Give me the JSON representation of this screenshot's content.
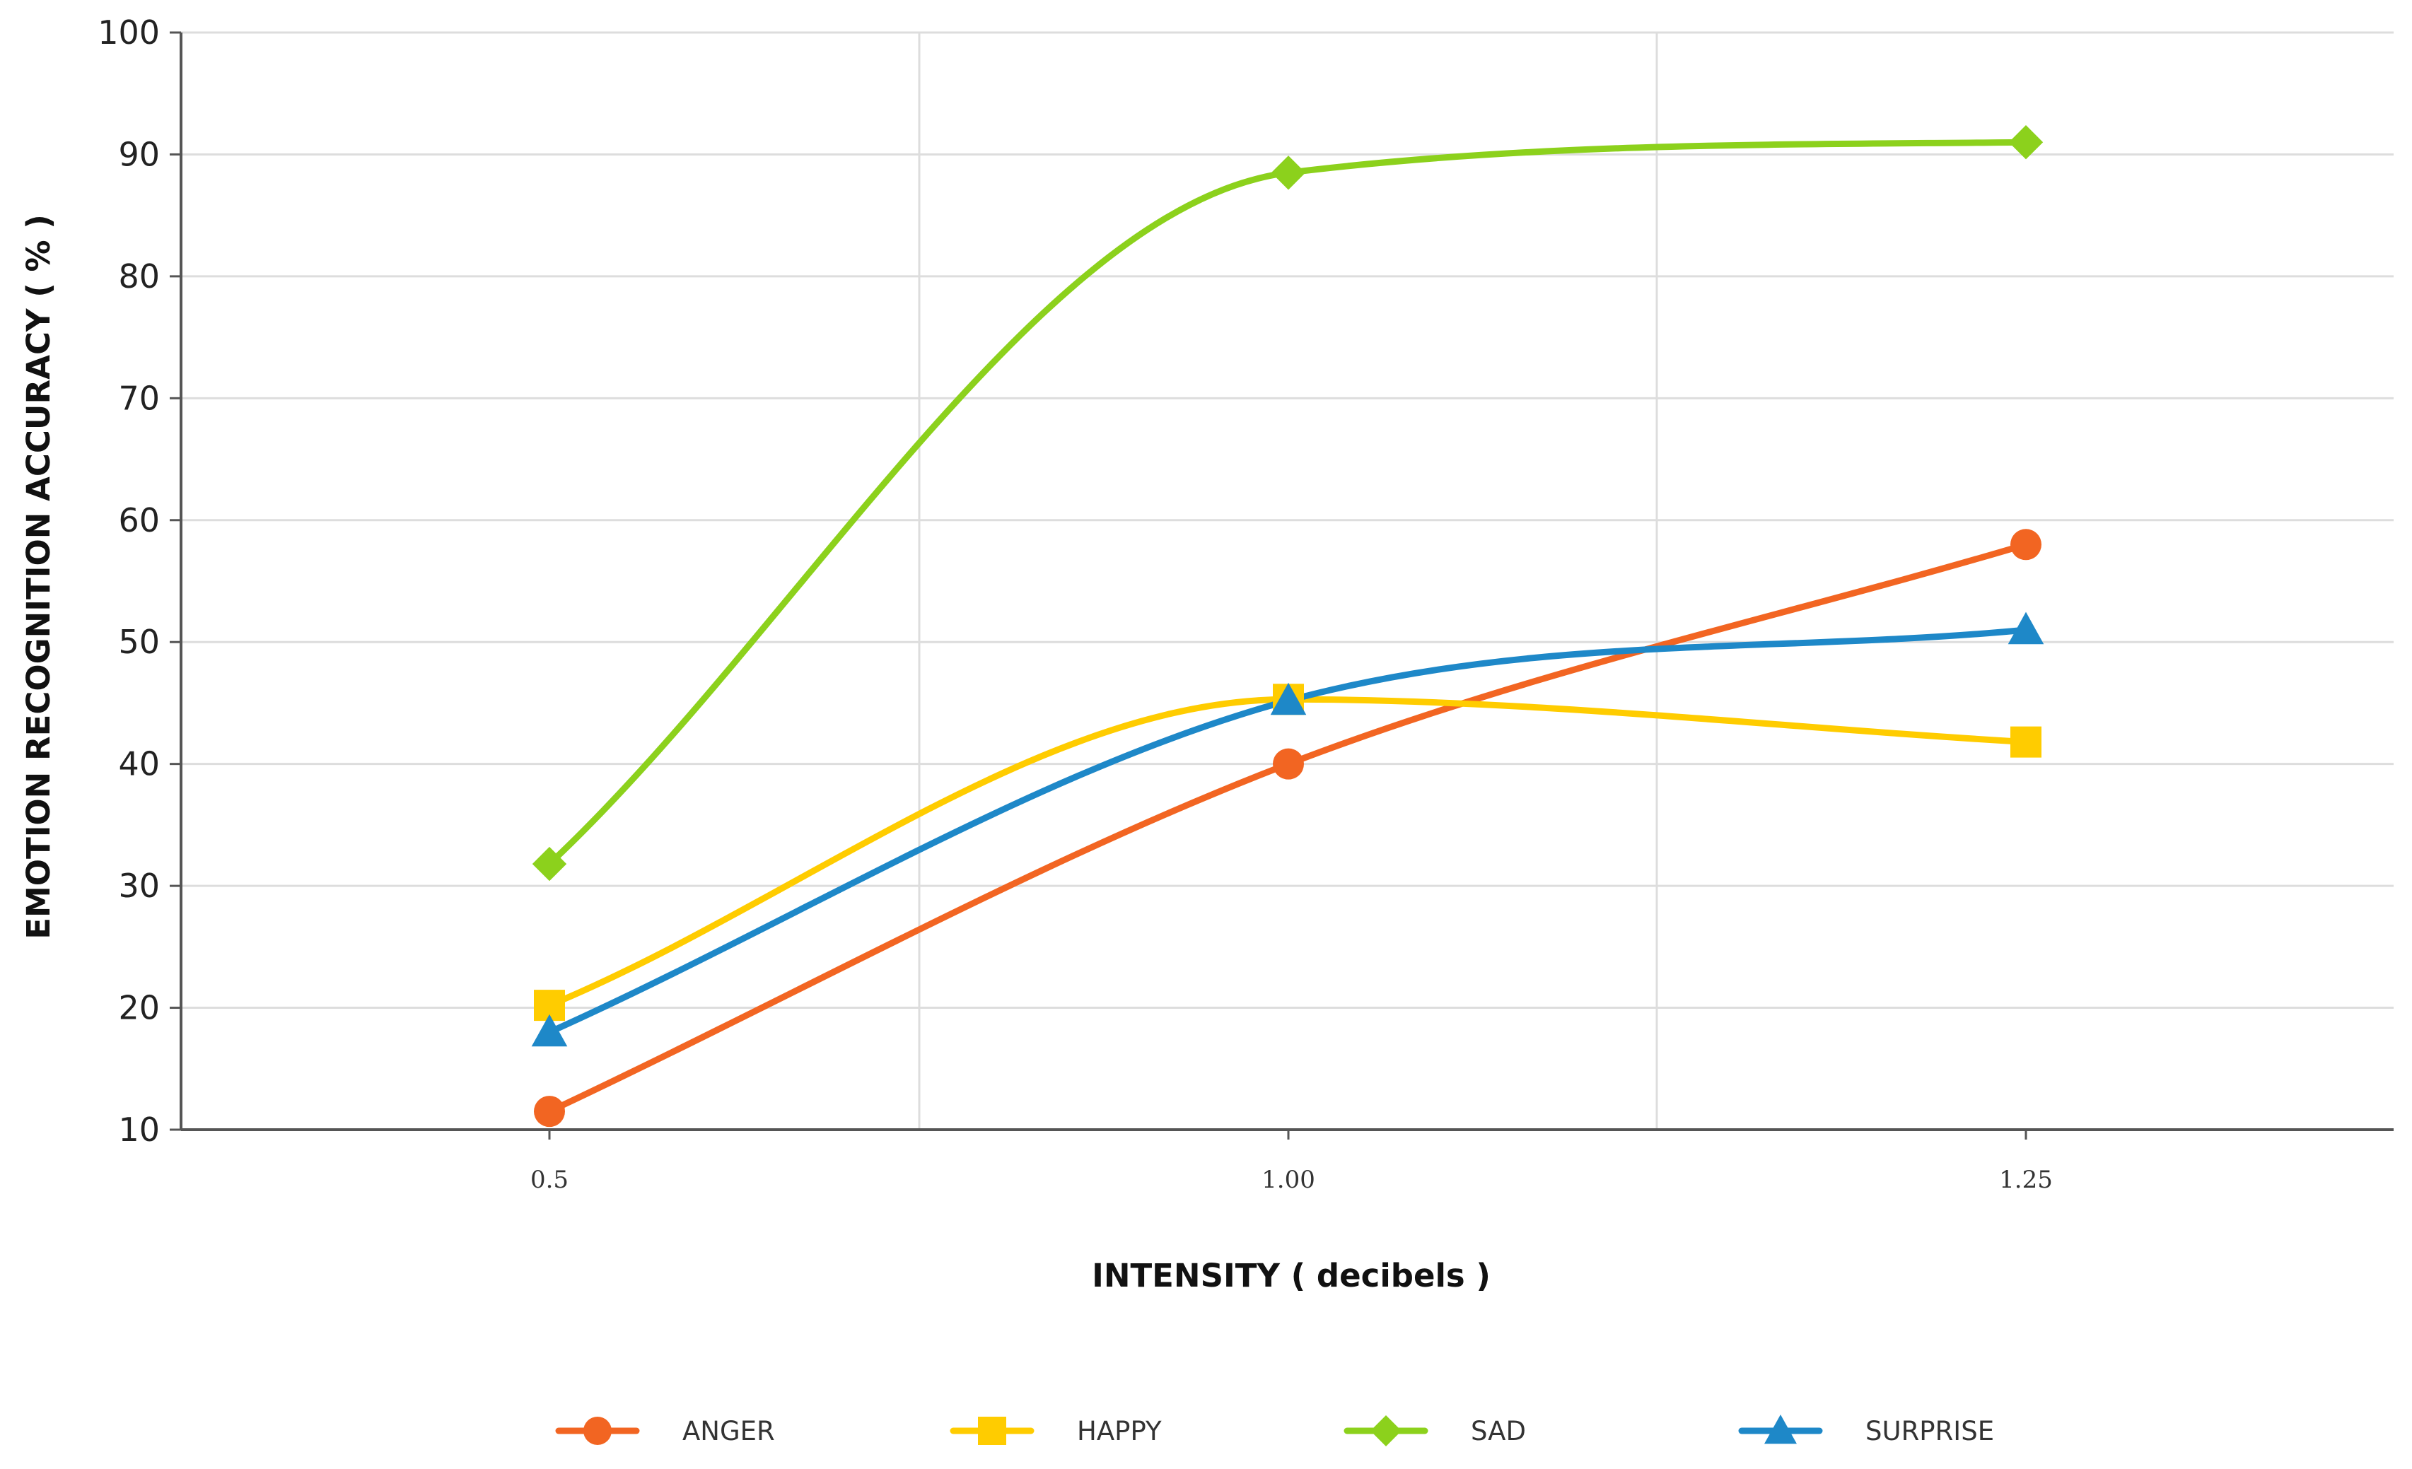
{
  "chart_data": {
    "type": "line",
    "title": "",
    "xlabel": "INTENSITY  ( decibels )",
    "ylabel": "EMOTION RECOGNITION ACCURACY ( % )",
    "categories": [
      "0.5",
      "1.00",
      "1.25"
    ],
    "ylim": [
      10,
      100
    ],
    "yticks": [
      10,
      20,
      30,
      40,
      50,
      60,
      70,
      80,
      90,
      100
    ],
    "grid": true,
    "legend_position": "bottom",
    "series": [
      {
        "name": "ANGER",
        "values": [
          11.5,
          40,
          58
        ],
        "color": "#F26522",
        "marker": "circle"
      },
      {
        "name": "HAPPY",
        "values": [
          20.2,
          45.3,
          41.8
        ],
        "color": "#FFCC00",
        "marker": "square"
      },
      {
        "name": "SAD",
        "values": [
          31.8,
          88.5,
          91
        ],
        "color": "#8CD11C",
        "marker": "diamond"
      },
      {
        "name": "SURPRISE",
        "values": [
          18,
          45.2,
          51
        ],
        "color": "#1E88C8",
        "marker": "triangle"
      }
    ]
  }
}
